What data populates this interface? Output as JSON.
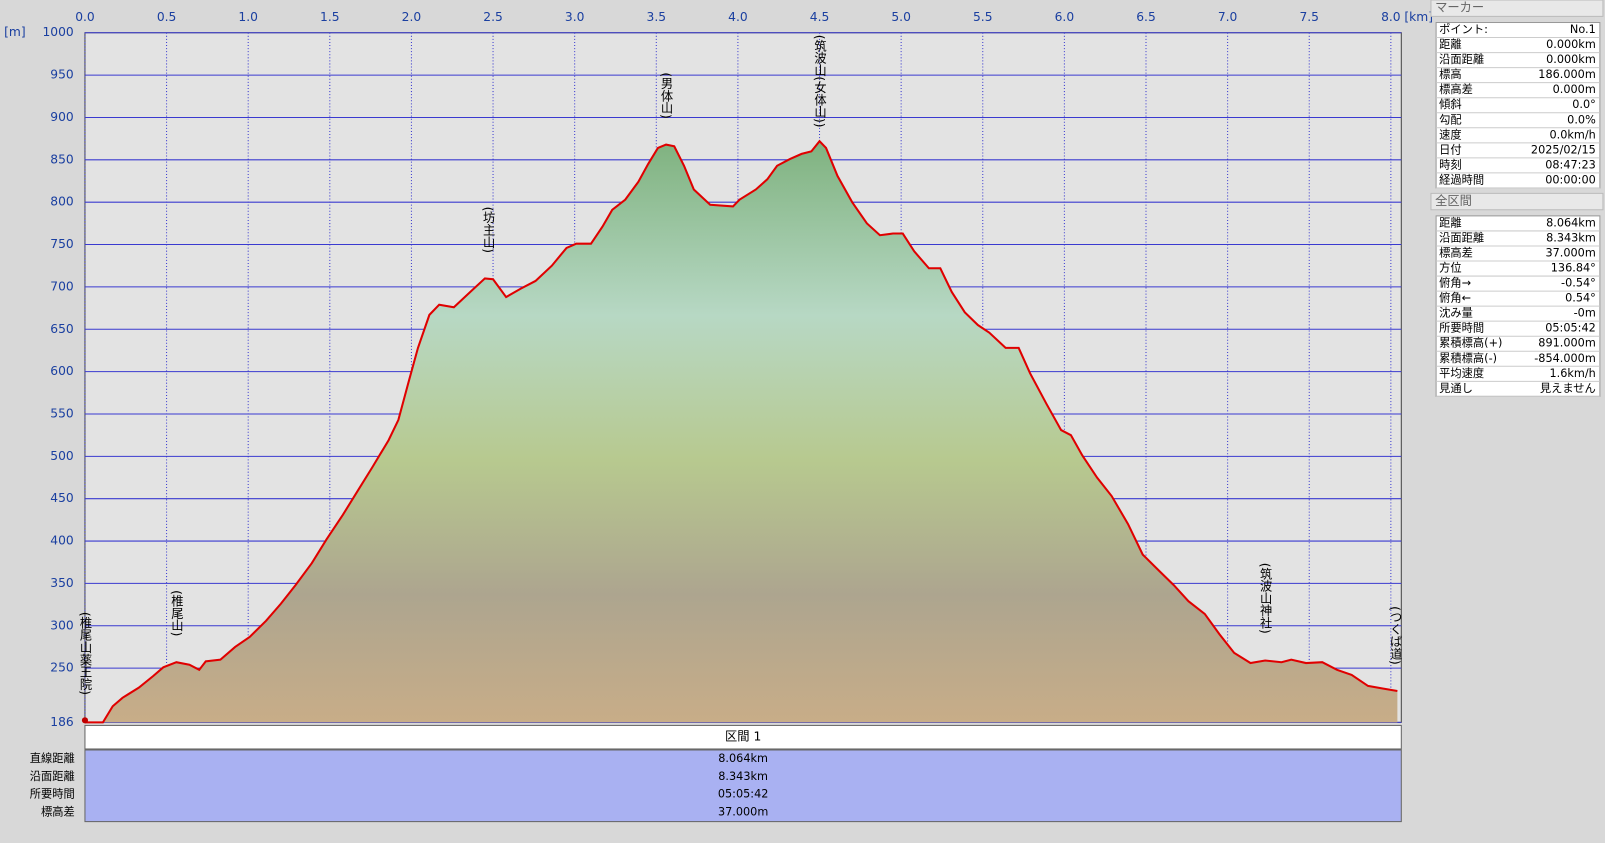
{
  "chart_data": {
    "type": "area",
    "x_label": "[km]",
    "y_label": "[m]",
    "xlim": [
      0,
      8.064
    ],
    "ylim": [
      186,
      1000
    ],
    "xticks": [
      {
        "value": 0,
        "label": "0.0"
      },
      {
        "value": 0.5,
        "label": "0.5"
      },
      {
        "value": 1,
        "label": "1.0"
      },
      {
        "value": 1.5,
        "label": "1.5"
      },
      {
        "value": 2,
        "label": "2.0"
      },
      {
        "value": 2.5,
        "label": "2.5"
      },
      {
        "value": 3,
        "label": "3.0"
      },
      {
        "value": 3.5,
        "label": "3.5"
      },
      {
        "value": 4,
        "label": "4.0"
      },
      {
        "value": 4.5,
        "label": "4.5"
      },
      {
        "value": 5,
        "label": "5.0"
      },
      {
        "value": 5.5,
        "label": "5.5"
      },
      {
        "value": 6,
        "label": "6.0"
      },
      {
        "value": 6.5,
        "label": "6.5"
      },
      {
        "value": 7,
        "label": "7.0"
      },
      {
        "value": 7.5,
        "label": "7.5"
      },
      {
        "value": 8,
        "label": "8.0"
      }
    ],
    "yticks": [
      186,
      250,
      300,
      350,
      400,
      450,
      500,
      550,
      600,
      650,
      700,
      750,
      800,
      850,
      900,
      950,
      1000
    ],
    "grid": true,
    "x": [
      0,
      0.11,
      0.17,
      0.23,
      0.33,
      0.42,
      0.48,
      0.56,
      0.64,
      0.7,
      0.74,
      0.83,
      0.92,
      1.01,
      1.11,
      1.2,
      1.29,
      1.39,
      1.48,
      1.58,
      1.67,
      1.76,
      1.86,
      1.92,
      1.98,
      2.04,
      2.11,
      2.17,
      2.26,
      2.36,
      2.45,
      2.5,
      2.58,
      2.67,
      2.76,
      2.86,
      2.95,
      3.01,
      3.1,
      3.17,
      3.23,
      3.31,
      3.39,
      3.45,
      3.51,
      3.56,
      3.61,
      3.67,
      3.73,
      3.83,
      3.97,
      4.01,
      4.11,
      4.18,
      4.24,
      4.32,
      4.39,
      4.45,
      4.5,
      4.54,
      4.61,
      4.7,
      4.79,
      4.87,
      4.95,
      5.01,
      5.08,
      5.17,
      5.24,
      5.31,
      5.39,
      5.47,
      5.54,
      5.64,
      5.72,
      5.79,
      5.89,
      5.98,
      6.04,
      6.11,
      6.2,
      6.29,
      6.39,
      6.48,
      6.58,
      6.67,
      6.76,
      6.86,
      6.95,
      7.04,
      7.14,
      7.23,
      7.33,
      7.39,
      7.48,
      7.58,
      7.67,
      7.76,
      7.86,
      7.95,
      8.04
    ],
    "series": [
      {
        "color": "#e00000",
        "values": [
          186,
          186,
          205,
          215,
          227,
          241,
          251,
          257,
          254,
          248,
          258,
          260,
          275,
          287,
          306,
          326,
          348,
          374,
          402,
          431,
          459,
          487,
          519,
          543,
          586,
          628,
          667,
          679,
          676,
          694,
          710,
          709,
          688,
          698,
          707,
          725,
          746,
          751,
          751,
          771,
          791,
          803,
          824,
          845,
          864,
          868,
          866,
          843,
          815,
          797,
          795,
          803,
          815,
          827,
          843,
          851,
          857,
          860,
          872,
          864,
          831,
          800,
          775,
          761,
          763,
          763,
          742,
          722,
          722,
          694,
          670,
          655,
          646,
          628,
          628,
          598,
          562,
          531,
          525,
          501,
          475,
          453,
          420,
          384,
          365,
          348,
          329,
          314,
          290,
          268,
          256,
          259,
          257,
          260,
          256,
          257,
          248,
          242,
          229,
          226,
          223
        ]
      }
    ],
    "waypoints": [
      {
        "label": "(椎尾山薬王院)",
        "x": 0
      },
      {
        "label": "(椎尾山)",
        "x": 0.56
      },
      {
        "label": "(坊主山)",
        "x": 2.47
      },
      {
        "label": "(男体山)",
        "x": 3.56
      },
      {
        "label": "(筑波山(女体山))",
        "x": 4.5
      },
      {
        "label": "(筑波山神社)",
        "x": 7.23
      },
      {
        "label": "(つくば道)",
        "x": 8.04
      }
    ]
  },
  "marker_panel": {
    "title": "マーカー",
    "rows": [
      [
        "ポイント:",
        "No.1"
      ],
      [
        "距離",
        "0.000km"
      ],
      [
        "沿面距離",
        "0.000km"
      ],
      [
        "標高",
        "186.000m"
      ],
      [
        "標高差",
        "0.000m"
      ],
      [
        "傾斜",
        "0.0°"
      ],
      [
        "勾配",
        "0.0%"
      ],
      [
        "速度",
        "0.0km/h"
      ],
      [
        "日付",
        "2025/02/15"
      ],
      [
        "時刻",
        "08:47:23"
      ],
      [
        "経過時間",
        "00:00:00"
      ]
    ]
  },
  "total_panel": {
    "title": "全区間",
    "rows": [
      [
        "距離",
        "8.064km"
      ],
      [
        "沿面距離",
        "8.343km"
      ],
      [
        "標高差",
        "37.000m"
      ],
      [
        "方位",
        "136.84°"
      ],
      [
        "俯角→",
        "-0.54°"
      ],
      [
        "俯角←",
        "0.54°"
      ],
      [
        "沈み量",
        "-0m"
      ],
      [
        "所要時間",
        "05:05:42"
      ],
      [
        "累積標高(+)",
        "891.000m"
      ],
      [
        "累積標高(-)",
        "-854.000m"
      ],
      [
        "平均速度",
        "1.6km/h"
      ],
      [
        "見通し",
        "見えません"
      ]
    ]
  },
  "section_table": {
    "header": "区間 1",
    "rows": [
      [
        "直線距離",
        "8.064km"
      ],
      [
        "沿面距離",
        "8.343km"
      ],
      [
        "所要時間",
        "05:05:42"
      ],
      [
        "標高差",
        "37.000m"
      ]
    ]
  }
}
